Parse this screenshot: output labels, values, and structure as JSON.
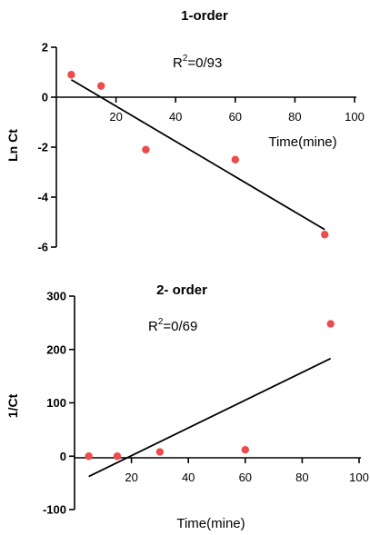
{
  "chart_data": [
    {
      "type": "scatter",
      "title": "1-order",
      "annotation": {
        "r2_label": "R",
        "r2_sup": "2",
        "r2_value": "=0/93"
      },
      "xlabel": "Time(mine)",
      "ylabel": "Ln Ct",
      "xlim": [
        0,
        100
      ],
      "ylim": [
        -6,
        2
      ],
      "xticks": [
        20,
        40,
        60,
        80,
        100
      ],
      "yticks": [
        2,
        0,
        -2,
        -4,
        -6
      ],
      "points": [
        {
          "x": 5,
          "y": 0.9
        },
        {
          "x": 15,
          "y": 0.45
        },
        {
          "x": 30,
          "y": -2.1
        },
        {
          "x": 60,
          "y": -2.5
        },
        {
          "x": 90,
          "y": -5.5
        }
      ],
      "fit_line": {
        "x": [
          5,
          90
        ],
        "y": [
          0.7,
          -5.3
        ]
      },
      "grid": false,
      "point_color": "#ee4b4b"
    },
    {
      "type": "scatter",
      "title": "2- order",
      "annotation": {
        "r2_label": "R",
        "r2_sup": "2",
        "r2_value": "=0/69"
      },
      "xlabel": "Time(mine)",
      "ylabel": "1/Ct",
      "xlim": [
        0,
        100
      ],
      "ylim": [
        -100,
        300
      ],
      "xticks": [
        20,
        40,
        60,
        80,
        100
      ],
      "yticks": [
        300,
        200,
        100,
        0,
        -100
      ],
      "points": [
        {
          "x": 5,
          "y": 0
        },
        {
          "x": 15,
          "y": 0
        },
        {
          "x": 30,
          "y": 8
        },
        {
          "x": 60,
          "y": 12
        },
        {
          "x": 90,
          "y": 248
        }
      ],
      "fit_line": {
        "x": [
          5,
          90
        ],
        "y": [
          -38,
          183
        ]
      },
      "grid": false,
      "point_color": "#ee4b4b"
    }
  ]
}
